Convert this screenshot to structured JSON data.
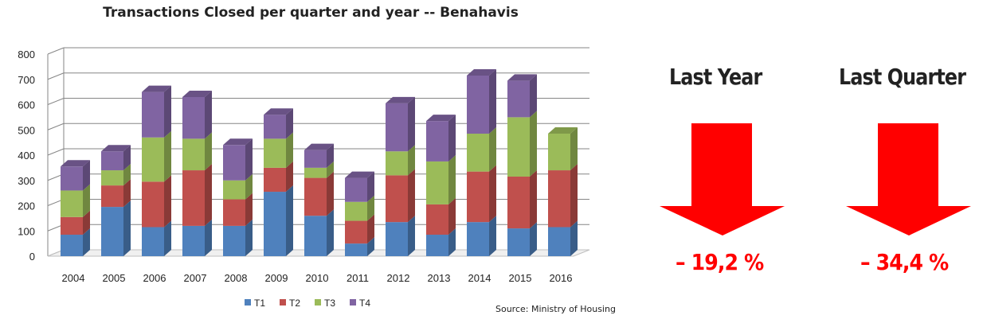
{
  "chart_data": {
    "type": "bar",
    "stacked": true,
    "title": "Transactions Closed per quarter and year -- Benahavis",
    "categories": [
      "2004",
      "2005",
      "2006",
      "2007",
      "2008",
      "2009",
      "2010",
      "2011",
      "2012",
      "2013",
      "2014",
      "2015",
      "2016"
    ],
    "series": [
      {
        "name": "T1",
        "color": "#4f81bd",
        "values": [
          85,
          195,
          115,
          120,
          120,
          255,
          160,
          50,
          135,
          85,
          135,
          110,
          115
        ]
      },
      {
        "name": "T2",
        "color": "#c0504d",
        "values": [
          70,
          85,
          180,
          220,
          105,
          95,
          150,
          90,
          185,
          120,
          200,
          205,
          225
        ]
      },
      {
        "name": "T3",
        "color": "#9bbb59",
        "values": [
          105,
          60,
          175,
          125,
          75,
          115,
          40,
          75,
          95,
          170,
          150,
          235,
          145
        ]
      },
      {
        "name": "T4",
        "color": "#8064a2",
        "values": [
          95,
          75,
          180,
          165,
          140,
          95,
          70,
          95,
          190,
          160,
          230,
          145,
          0
        ]
      }
    ],
    "yticks": [
      0,
      100,
      200,
      300,
      400,
      500,
      600,
      700,
      800
    ],
    "ylim": [
      0,
      800
    ],
    "grid": true,
    "legend": "bottom"
  },
  "source": "Source: Ministry of Housing",
  "kpis": [
    {
      "label": "Last Year",
      "value": "– 19,2 %"
    },
    {
      "label": "Last Quarter",
      "value": "– 34,4 %"
    }
  ],
  "colors": {
    "arrow": "#ff0000",
    "gridline": "#868686"
  }
}
